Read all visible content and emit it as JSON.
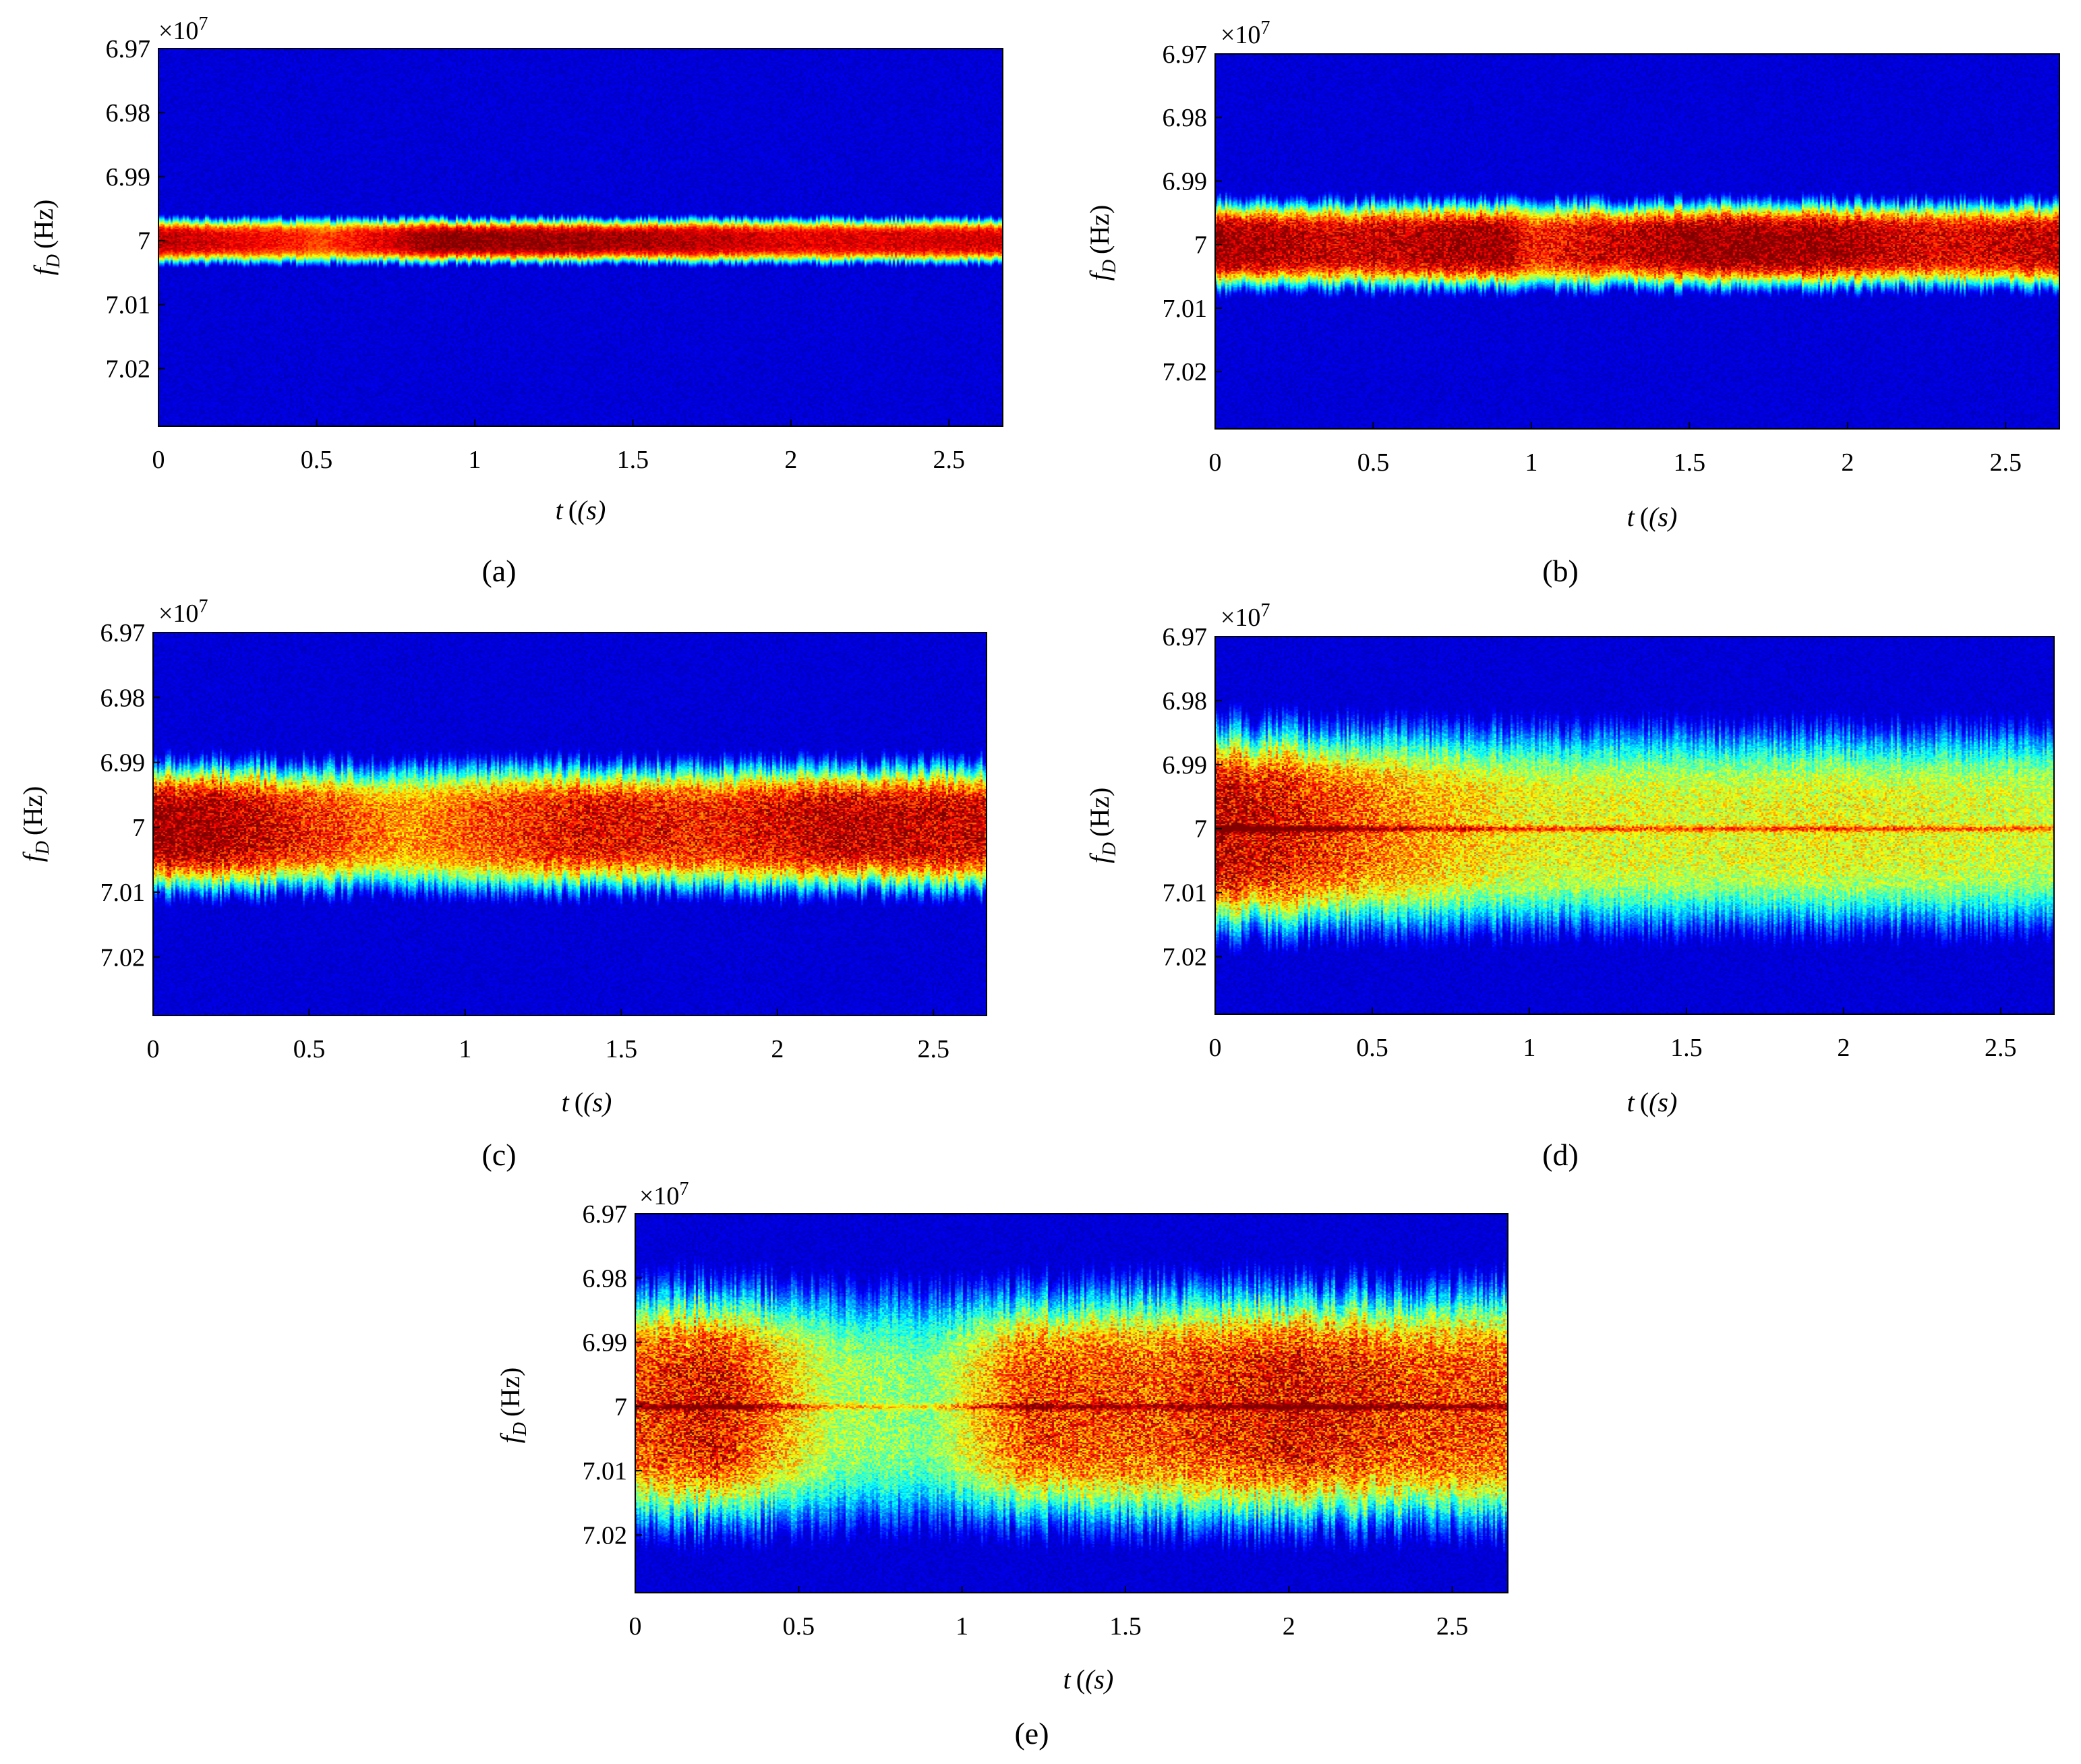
{
  "figure": {
    "panel_labels": [
      "(a)",
      "(b)",
      "(c)",
      "(d)",
      "(e)"
    ]
  },
  "colors": {
    "background_low": "#00008f",
    "core_high": "#e40000",
    "colormap": "jet"
  },
  "chart_data": [
    {
      "type": "heatmap",
      "panel": "(a)",
      "title": "",
      "xlabel_main": "t",
      "xlabel_unit": "(s)",
      "ylabel_main": "f",
      "ylabel_sub": "D",
      "ylabel_unit": "(Hz)",
      "y_multiplier": "×10",
      "y_multiplier_exp": "7",
      "x_ticks": [
        0,
        0.5,
        1,
        1.5,
        2,
        2.5
      ],
      "x_tick_labels": [
        "0",
        "0.5",
        "1",
        "1.5",
        "2",
        "2.5"
      ],
      "y_ticks": [
        6.97,
        6.98,
        6.99,
        7,
        7.01,
        7.02
      ],
      "y_tick_labels": [
        "6.97",
        "6.98",
        "6.99",
        "7",
        "7.01",
        "7.02"
      ],
      "xlim": [
        0,
        2.67
      ],
      "ylim": [
        6.97,
        7.029
      ],
      "y_reversed": true,
      "center_frequency": 7.0,
      "band_halfwidth": 0.0035,
      "band_ripple": 0.0004,
      "noise_level": 0.15,
      "centerline_boost": 0,
      "intensity_profile": {
        "t": [
          0,
          0.45,
          0.5,
          0.9,
          1.2,
          1.6,
          2.0,
          2.67
        ],
        "v": [
          0.95,
          0.85,
          0.8,
          1.0,
          0.98,
          0.96,
          0.9,
          0.92
        ]
      }
    },
    {
      "type": "heatmap",
      "panel": "(b)",
      "title": "",
      "xlabel_main": "t",
      "xlabel_unit": "(s)",
      "ylabel_main": "f",
      "ylabel_sub": "D",
      "ylabel_unit": "(Hz)",
      "y_multiplier": "×10",
      "y_multiplier_exp": "7",
      "x_ticks": [
        0,
        0.5,
        1,
        1.5,
        2,
        2.5
      ],
      "x_tick_labels": [
        "0",
        "0.5",
        "1",
        "1.5",
        "2",
        "2.5"
      ],
      "y_ticks": [
        6.97,
        6.98,
        6.99,
        7,
        7.01,
        7.02
      ],
      "y_tick_labels": [
        "6.97",
        "6.98",
        "6.99",
        "7",
        "7.01",
        "7.02"
      ],
      "xlim": [
        0,
        2.67
      ],
      "ylim": [
        6.97,
        7.029
      ],
      "y_reversed": true,
      "center_frequency": 7.0,
      "band_halfwidth": 0.0068,
      "band_ripple": 0.0008,
      "noise_level": 0.3,
      "centerline_boost": 0,
      "intensity_profile": {
        "t": [
          0,
          0.4,
          0.9,
          1.0,
          1.5,
          1.9,
          2.3,
          2.67
        ],
        "v": [
          1.0,
          0.92,
          1.0,
          0.85,
          1.0,
          1.0,
          0.9,
          0.95
        ]
      }
    },
    {
      "type": "heatmap",
      "panel": "(c)",
      "title": "",
      "xlabel_main": "t",
      "xlabel_unit": "(s)",
      "ylabel_main": "f",
      "ylabel_sub": "D",
      "ylabel_unit": "(Hz)",
      "y_multiplier": "×10",
      "y_multiplier_exp": "7",
      "x_ticks": [
        0,
        0.5,
        1,
        1.5,
        2,
        2.5
      ],
      "x_tick_labels": [
        "0",
        "0.5",
        "1",
        "1.5",
        "2",
        "2.5"
      ],
      "y_ticks": [
        6.97,
        6.98,
        6.99,
        7,
        7.01,
        7.02
      ],
      "y_tick_labels": [
        "6.97",
        "6.98",
        "6.99",
        "7",
        "7.01",
        "7.02"
      ],
      "xlim": [
        0,
        2.67
      ],
      "ylim": [
        6.97,
        7.029
      ],
      "y_reversed": true,
      "center_frequency": 7.0,
      "band_halfwidth": 0.0098,
      "band_ripple": 0.0012,
      "noise_level": 0.38,
      "centerline_boost": 0,
      "intensity_profile": {
        "t": [
          0,
          0.2,
          0.8,
          1.0,
          1.4,
          1.8,
          2.2,
          2.67
        ],
        "v": [
          1.0,
          0.98,
          0.72,
          0.78,
          0.9,
          0.85,
          0.95,
          0.92
        ]
      }
    },
    {
      "type": "heatmap",
      "panel": "(d)",
      "title": "",
      "xlabel_main": "t",
      "xlabel_unit": "(s)",
      "ylabel_main": "f",
      "ylabel_sub": "D",
      "ylabel_unit": "(Hz)",
      "y_multiplier": "×10",
      "y_multiplier_exp": "7",
      "x_ticks": [
        0,
        0.5,
        1,
        1.5,
        2,
        2.5
      ],
      "x_tick_labels": [
        "0",
        "0.5",
        "1",
        "1.5",
        "2",
        "2.5"
      ],
      "y_ticks": [
        6.97,
        6.98,
        6.99,
        7,
        7.01,
        7.02
      ],
      "y_tick_labels": [
        "6.97",
        "6.98",
        "6.99",
        "7",
        "7.01",
        "7.02"
      ],
      "xlim": [
        0,
        2.67
      ],
      "ylim": [
        6.97,
        7.029
      ],
      "y_reversed": true,
      "center_frequency": 7.0,
      "band_halfwidth": 0.0158,
      "band_ripple": 0.0018,
      "noise_level": 0.45,
      "centerline_boost": 0.35,
      "intensity_profile": {
        "t": [
          0,
          0.2,
          0.6,
          1.0,
          1.5,
          2.0,
          2.67
        ],
        "v": [
          0.95,
          0.9,
          0.72,
          0.62,
          0.6,
          0.62,
          0.58
        ]
      }
    },
    {
      "type": "heatmap",
      "panel": "(e)",
      "title": "",
      "xlabel_main": "t",
      "xlabel_unit": "(s)",
      "ylabel_main": "f",
      "ylabel_sub": "D",
      "ylabel_unit": "(Hz)",
      "y_multiplier": "×10",
      "y_multiplier_exp": "7",
      "x_ticks": [
        0,
        0.5,
        1,
        1.5,
        2,
        2.5
      ],
      "x_tick_labels": [
        "0",
        "0.5",
        "1",
        "1.5",
        "2",
        "2.5"
      ],
      "y_ticks": [
        6.97,
        6.98,
        6.99,
        7,
        7.01,
        7.02
      ],
      "y_tick_labels": [
        "6.97",
        "6.98",
        "6.99",
        "7",
        "7.01",
        "7.02"
      ],
      "xlim": [
        0,
        2.67
      ],
      "ylim": [
        6.97,
        7.029
      ],
      "y_reversed": true,
      "center_frequency": 7.0,
      "band_halfwidth": 0.0185,
      "band_ripple": 0.0022,
      "noise_level": 0.5,
      "centerline_boost": 0.3,
      "intensity_profile": {
        "t": [
          0,
          0.25,
          0.6,
          0.9,
          1.2,
          1.6,
          2.0,
          2.4,
          2.67
        ],
        "v": [
          0.82,
          0.9,
          0.55,
          0.5,
          0.82,
          0.8,
          0.9,
          0.82,
          0.8
        ]
      }
    }
  ]
}
